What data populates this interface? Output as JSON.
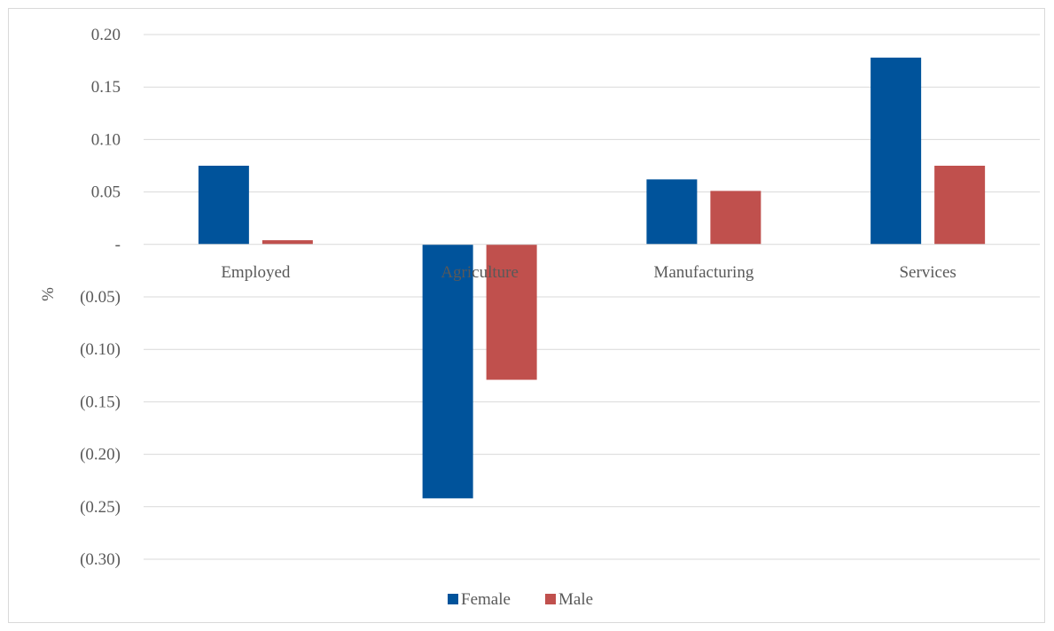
{
  "chart_data": {
    "type": "bar",
    "title": "",
    "xlabel": "",
    "ylabel": "%",
    "categories": [
      "Employed",
      "Agriculture",
      "Manufacturing",
      "Services"
    ],
    "series": [
      {
        "name": "Female",
        "color": "#00539b",
        "values": [
          0.075,
          -0.242,
          0.062,
          0.178
        ]
      },
      {
        "name": "Male",
        "color": "#c0504d",
        "values": [
          0.004,
          -0.129,
          0.051,
          0.075
        ]
      }
    ],
    "ylim": [
      -0.3,
      0.2
    ],
    "yticks": [
      0.2,
      0.15,
      0.1,
      0.05,
      0,
      -0.05,
      -0.1,
      -0.15,
      -0.2,
      -0.25,
      -0.3
    ],
    "ytick_labels": [
      "0.20",
      "0.15",
      "0.10",
      "0.05",
      "-",
      "(0.05)",
      "(0.10)",
      "(0.15)",
      "(0.20)",
      "(0.25)",
      "(0.30)"
    ],
    "grid": true,
    "legend": "bottom-center"
  }
}
